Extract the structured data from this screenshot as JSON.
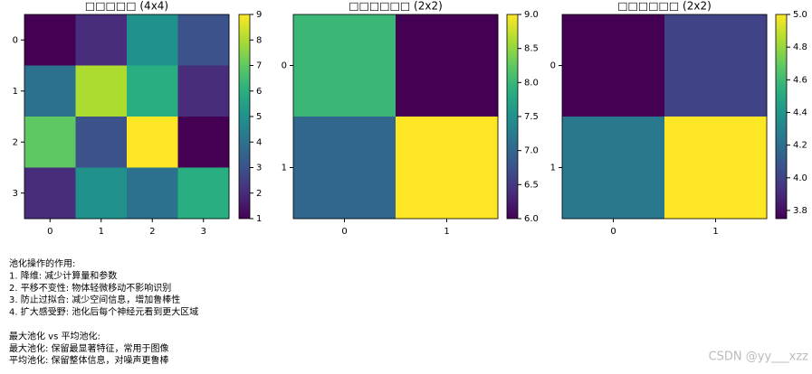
{
  "chart_data": [
    {
      "type": "heatmap",
      "title": "□□□□□ (4x4)",
      "colormap": "viridis",
      "z": [
        [
          1,
          2,
          5,
          3
        ],
        [
          4,
          8,
          6,
          2
        ],
        [
          7,
          3,
          9,
          1
        ],
        [
          2,
          5,
          4,
          6
        ]
      ],
      "xticks": [
        0,
        1,
        2,
        3
      ],
      "yticks": [
        0,
        1,
        2,
        3
      ],
      "clim": [
        1,
        9
      ],
      "cticks": [
        1,
        2,
        3,
        4,
        5,
        6,
        7,
        8,
        9
      ]
    },
    {
      "type": "heatmap",
      "title": "□□□□□□ (2x2)",
      "colormap": "viridis",
      "z": [
        [
          8,
          6
        ],
        [
          7,
          9
        ]
      ],
      "xticks": [
        0,
        1
      ],
      "yticks": [
        0,
        1
      ],
      "clim": [
        6,
        9
      ],
      "cticks": [
        {
          "value": 6,
          "label": "6.0"
        },
        6.5,
        {
          "value": 7,
          "label": "7.0"
        },
        7.5,
        {
          "value": 8,
          "label": "8.0"
        },
        8.5,
        {
          "value": 9,
          "label": "9.0"
        }
      ]
    },
    {
      "type": "heatmap",
      "title": "□□□□□□ (2x2)",
      "colormap": "viridis",
      "z": [
        [
          3.75,
          4
        ],
        [
          4.25,
          5
        ]
      ],
      "xticks": [
        0,
        1
      ],
      "yticks": [
        0,
        1
      ],
      "clim": [
        3.75,
        5
      ],
      "cticks": [
        3.8,
        {
          "value": 4,
          "label": "4.0"
        },
        4.2,
        4.4,
        4.6,
        4.8,
        {
          "value": 5,
          "label": "5.0"
        }
      ]
    }
  ],
  "text_block": {
    "paragraphs": [
      [
        "池化操作的作用:",
        "1. 降维: 减少计算量和参数",
        "2. 平移不变性: 物体轻微移动不影响识别",
        "3. 防止过拟合: 减少空间信息，增加鲁棒性",
        "4. 扩大感受野: 池化后每个神经元看到更大区域"
      ],
      [
        "最大池化 vs 平均池化:",
        "最大池化: 保留最显著特征，常用于图像",
        "平均池化: 保留整体信息，对噪声更鲁棒"
      ]
    ]
  },
  "watermark": "CSDN @yy___xzz"
}
